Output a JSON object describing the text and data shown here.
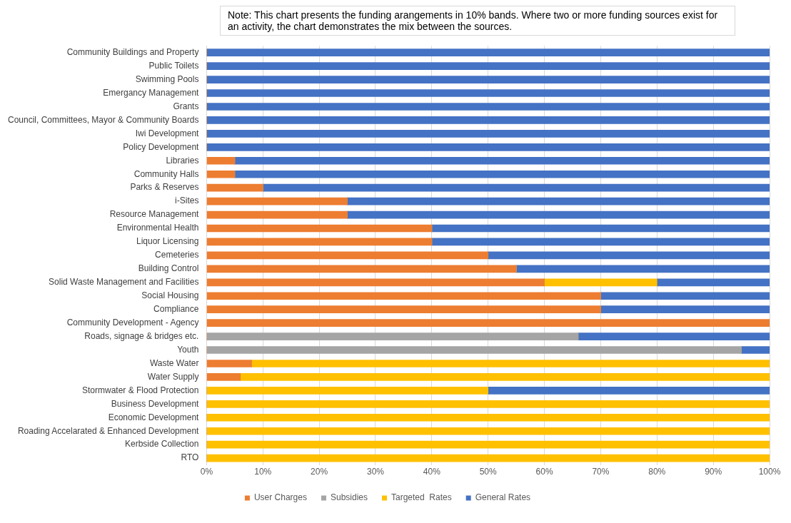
{
  "chart_data": {
    "type": "bar",
    "orientation": "horizontal",
    "stacked": true,
    "categories": [
      "Community Buildings and Property",
      "Public Toilets",
      "Swimming Pools",
      "Emergancy Management",
      "Grants",
      "Council, Committees, Mayor & Community Boards",
      "Iwi Development",
      "Policy Development",
      "Libraries",
      "Community Halls",
      "Parks & Reserves",
      "i-Sites",
      "Resource Management",
      "Environmental Health",
      "Liquor Licensing",
      "Cemeteries",
      "Building Control",
      "Solid Waste Management and Facilities",
      "Social Housing",
      "Compliance",
      "Community Development - Agency",
      "Roads, signage & bridges etc.",
      "Youth",
      "Waste Water",
      "Water Supply",
      "Stormwater & Flood Protection",
      "Business Development",
      "Economic Development",
      "Roading Accelarated & Enhanced Development",
      "Kerbside Collection",
      "RTO"
    ],
    "series": [
      {
        "name": "User Charges",
        "color": "#ed7d31",
        "values": [
          0,
          0,
          0,
          0,
          0,
          0,
          0,
          0,
          5,
          5,
          10,
          25,
          25,
          40,
          40,
          50,
          55,
          60,
          70,
          70,
          100,
          0,
          0,
          8,
          6,
          0,
          0,
          0,
          0,
          0,
          0
        ]
      },
      {
        "name": "Subsidies",
        "color": "#a5a5a5",
        "values": [
          0,
          0,
          0,
          0,
          0,
          0,
          0,
          0,
          0,
          0,
          0,
          0,
          0,
          0,
          0,
          0,
          0,
          0,
          0,
          0,
          0,
          66,
          95,
          0,
          0,
          0,
          0,
          0,
          0,
          0,
          0
        ]
      },
      {
        "name": "Targeted  Rates",
        "color": "#ffc000",
        "values": [
          0,
          0,
          0,
          0,
          0,
          0,
          0,
          0,
          0,
          0,
          0,
          0,
          0,
          0,
          0,
          0,
          0,
          20,
          0,
          0,
          0,
          0,
          0,
          92,
          94,
          50,
          100,
          100,
          100,
          100,
          100
        ]
      },
      {
        "name": "General Rates",
        "color": "#4472c4",
        "values": [
          100,
          100,
          100,
          100,
          100,
          100,
          100,
          100,
          95,
          95,
          90,
          75,
          75,
          60,
          60,
          50,
          45,
          20,
          30,
          30,
          0,
          34,
          5,
          0,
          0,
          50,
          0,
          0,
          0,
          0,
          0
        ]
      }
    ],
    "xlim": [
      0,
      100
    ],
    "xticks": [
      {
        "value": 0,
        "label": "0%"
      },
      {
        "value": 10,
        "label": "10%"
      },
      {
        "value": 20,
        "label": "20%"
      },
      {
        "value": 30,
        "label": "30%"
      },
      {
        "value": 40,
        "label": "40%"
      },
      {
        "value": 50,
        "label": "50%"
      },
      {
        "value": 60,
        "label": "60%"
      },
      {
        "value": 70,
        "label": "70%"
      },
      {
        "value": 80,
        "label": "80%"
      },
      {
        "value": 90,
        "label": "90%"
      },
      {
        "value": 100,
        "label": "100%"
      }
    ],
    "grid": "x",
    "legend": "bottom",
    "marker": "square",
    "annotations": [
      "Note: This chart presents the funding arangements in 10% bands. Where two or more funding sources exist for an activity, the chart demonstrates the mix between the sources."
    ]
  }
}
